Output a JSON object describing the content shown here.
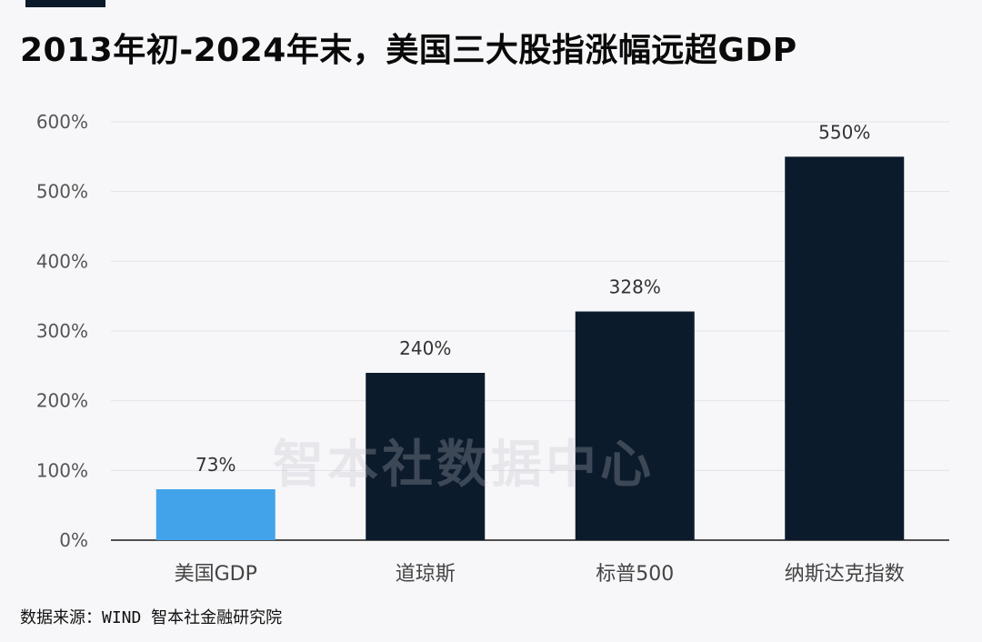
{
  "title": "2013年初-2024年末，美国三大股指涨幅远超GDP",
  "source": "数据来源：WIND 智本社金融研究院",
  "watermark": "智本社数据中心",
  "colors": {
    "highlight": "#42a2ea",
    "bar": "#0c1b2c",
    "grid": "#e2e3e8",
    "axis_text": "#555555",
    "label_text": "#333333"
  },
  "chart_data": {
    "type": "bar",
    "title": "2013年初-2024年末，美国三大股指涨幅远超GDP",
    "categories": [
      "美国GDP",
      "道琼斯",
      "标普500",
      "纳斯达克指数"
    ],
    "values": [
      73,
      240,
      328,
      550
    ],
    "data_labels": [
      "73%",
      "240%",
      "328%",
      "550%"
    ],
    "ylim": [
      0,
      600
    ],
    "yticks": [
      0,
      100,
      200,
      300,
      400,
      500,
      600
    ],
    "ytick_labels": [
      "0%",
      "100%",
      "200%",
      "300%",
      "400%",
      "500%",
      "600%"
    ],
    "grid": true,
    "legend": "none",
    "highlight_index": 0
  }
}
